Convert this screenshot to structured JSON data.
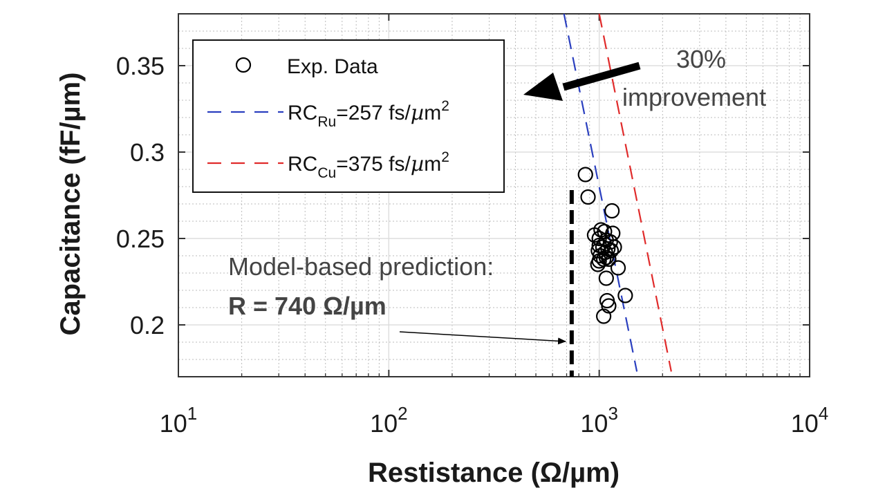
{
  "chart_data": {
    "type": "scatter",
    "xlabel": "Restistance (Ω/µm)",
    "ylabel": "Capacitance (fF/µm)",
    "x_scale": "log",
    "xlim": [
      10,
      10000
    ],
    "ylim": [
      0.17,
      0.38
    ],
    "x_ticks": [
      {
        "value": 10,
        "base": "10",
        "exp": "1"
      },
      {
        "value": 100,
        "base": "10",
        "exp": "2"
      },
      {
        "value": 1000,
        "base": "10",
        "exp": "3"
      },
      {
        "value": 10000,
        "base": "10",
        "exp": "4"
      }
    ],
    "y_ticks": [
      {
        "value": 0.2,
        "label": "0.2"
      },
      {
        "value": 0.25,
        "label": "0.25"
      },
      {
        "value": 0.3,
        "label": "0.3"
      },
      {
        "value": 0.35,
        "label": "0.35"
      }
    ],
    "grid": true,
    "legend_position": "top-left",
    "series": [
      {
        "name": "Exp. Data",
        "kind": "markers",
        "color": "#000000",
        "points": [
          {
            "x": 860,
            "y": 0.287
          },
          {
            "x": 885,
            "y": 0.274
          },
          {
            "x": 1150,
            "y": 0.266
          },
          {
            "x": 1020,
            "y": 0.255
          },
          {
            "x": 1060,
            "y": 0.254
          },
          {
            "x": 1160,
            "y": 0.253
          },
          {
            "x": 950,
            "y": 0.252
          },
          {
            "x": 1000,
            "y": 0.25
          },
          {
            "x": 1080,
            "y": 0.249
          },
          {
            "x": 1130,
            "y": 0.248
          },
          {
            "x": 1000,
            "y": 0.246
          },
          {
            "x": 1040,
            "y": 0.245
          },
          {
            "x": 1100,
            "y": 0.244
          },
          {
            "x": 1180,
            "y": 0.245
          },
          {
            "x": 990,
            "y": 0.243
          },
          {
            "x": 1070,
            "y": 0.242
          },
          {
            "x": 1140,
            "y": 0.243
          },
          {
            "x": 1010,
            "y": 0.24
          },
          {
            "x": 1080,
            "y": 0.239
          },
          {
            "x": 1000,
            "y": 0.237
          },
          {
            "x": 1050,
            "y": 0.238
          },
          {
            "x": 1110,
            "y": 0.238
          },
          {
            "x": 985,
            "y": 0.235
          },
          {
            "x": 1230,
            "y": 0.233
          },
          {
            "x": 1080,
            "y": 0.227
          },
          {
            "x": 1330,
            "y": 0.217
          },
          {
            "x": 1090,
            "y": 0.214
          },
          {
            "x": 1110,
            "y": 0.211
          },
          {
            "x": 1050,
            "y": 0.205
          }
        ]
      },
      {
        "name": "RC_Ru=257 fs/µm^2",
        "label_base": "RC",
        "label_sub": "Ru",
        "label_mid": "=257 fs/",
        "label_mu": "µ",
        "label_unit": "m",
        "label_sup": "2",
        "kind": "dashed-line",
        "color": "#2a3fbf",
        "x": [
          680,
          1510
        ],
        "y": [
          0.38,
          0.173
        ]
      },
      {
        "name": "RC_Cu=375 fs/µm^2",
        "label_base": "RC",
        "label_sub": "Cu",
        "label_mid": "=375 fs/",
        "label_mu": "µ",
        "label_unit": "m",
        "label_sup": "2",
        "kind": "dashed-line",
        "color": "#e02a2a",
        "x": [
          1000,
          2200
        ],
        "y": [
          0.38,
          0.173
        ]
      },
      {
        "name": "prediction",
        "kind": "vertical-dashed",
        "color": "#000000",
        "x_value": 740,
        "y_range": [
          0.17,
          0.278
        ]
      }
    ],
    "annotations": {
      "improvement_pct": "30%",
      "improvement_word": "improvement",
      "prediction_line1": "Model-based prediction:",
      "prediction_line2": "R = 740 Ω/µm"
    }
  }
}
